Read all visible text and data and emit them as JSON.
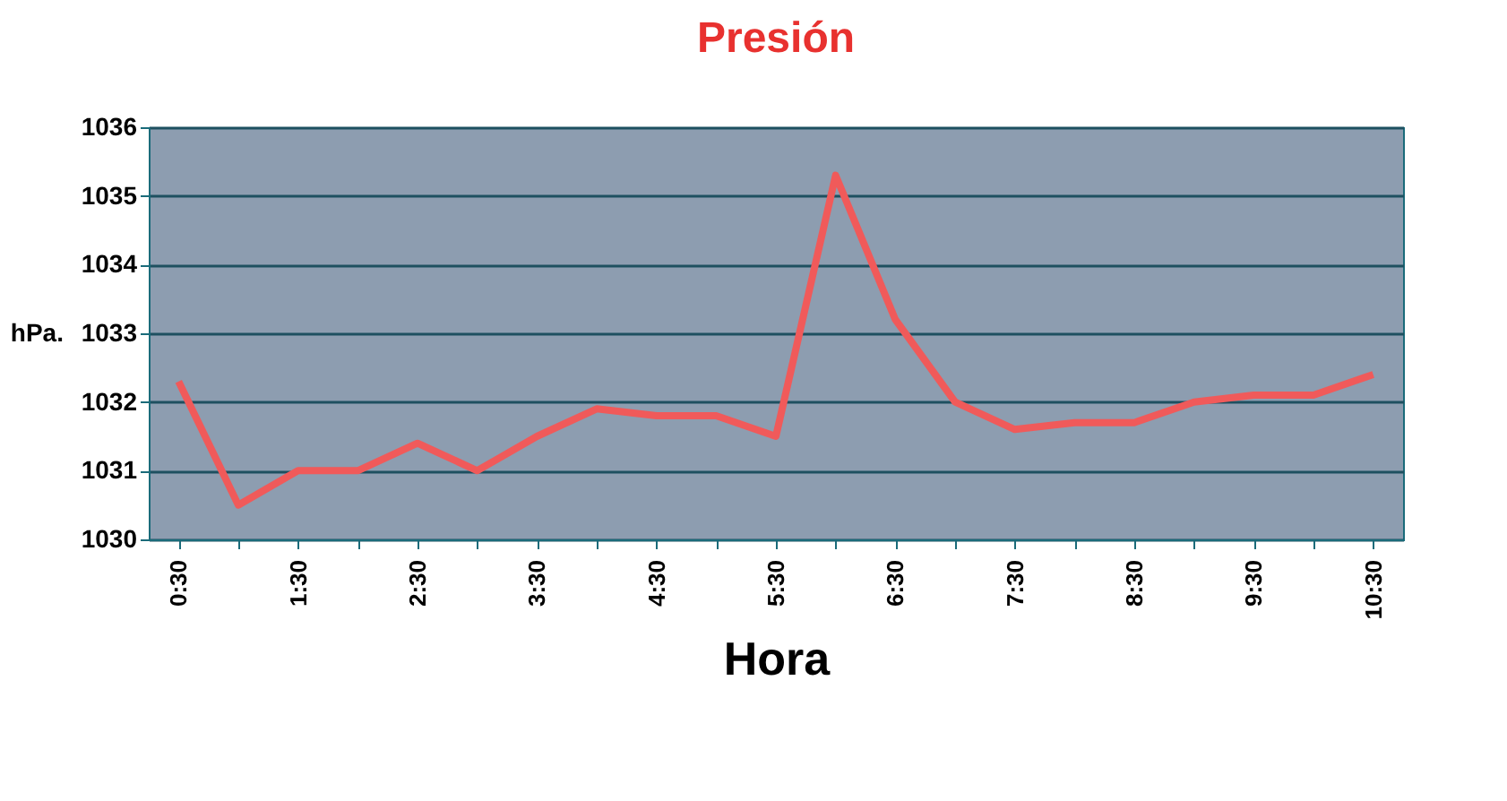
{
  "chart_data": {
    "type": "line",
    "title": "Presión",
    "xlabel": "Hora",
    "ylabel": "hPa.",
    "categories": [
      "0:30",
      null,
      "1:30",
      null,
      "2:30",
      null,
      "3:30",
      null,
      "4:30",
      null,
      "5:30",
      null,
      "6:30",
      null,
      "7:30",
      null,
      "8:30",
      null,
      "9:30",
      null,
      "10:30"
    ],
    "series": [
      {
        "color": "#f05a5a",
        "values": [
          1032.3,
          1030.5,
          1031.0,
          1031.0,
          1031.4,
          1031.0,
          1031.5,
          1031.9,
          1031.8,
          1031.8,
          1031.5,
          1035.3,
          1033.2,
          1032.0,
          1031.6,
          1031.7,
          1031.7,
          1032.0,
          1032.1,
          1032.1,
          1032.4
        ]
      }
    ],
    "ylim": [
      1030,
      1036
    ],
    "yticks": [
      1030,
      1031,
      1032,
      1033,
      1034,
      1035,
      1036
    ],
    "grid": "y",
    "marker": "none",
    "line_style": "solid"
  }
}
